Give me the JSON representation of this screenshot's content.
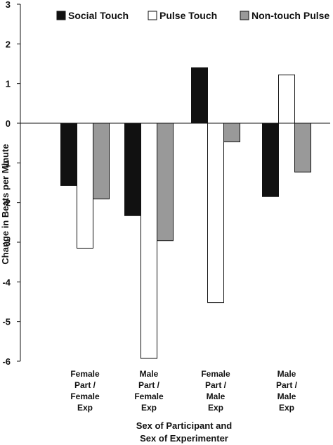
{
  "chart_data": {
    "type": "bar",
    "ylabel": "Change in Beats per Minute",
    "xlabel": [
      "Sex of Participant and",
      "Sex of Experimenter"
    ],
    "ylim": [
      -6,
      3
    ],
    "yticks": [
      3,
      2,
      1,
      0,
      -1,
      -2,
      -3,
      -4,
      -5,
      -6
    ],
    "categories": [
      [
        "Female",
        "Part /",
        "Female",
        "Exp"
      ],
      [
        "Male",
        "Part /",
        "Female",
        "Exp"
      ],
      [
        "Female",
        "Part /",
        "Male",
        "Exp"
      ],
      [
        "Male",
        "Part /",
        "Male",
        "Exp"
      ]
    ],
    "series": [
      {
        "name": "Social Touch",
        "color": "#111111",
        "values": [
          -1.57,
          -2.33,
          1.4,
          -1.85
        ]
      },
      {
        "name": "Pulse Touch",
        "color": "#ffffff",
        "values": [
          -3.15,
          -5.93,
          -4.52,
          1.22
        ]
      },
      {
        "name": "Non-touch Pulse",
        "color": "#999999",
        "values": [
          -1.91,
          -2.96,
          -0.47,
          -1.23
        ]
      }
    ],
    "legend_position": "top",
    "grid": false
  }
}
